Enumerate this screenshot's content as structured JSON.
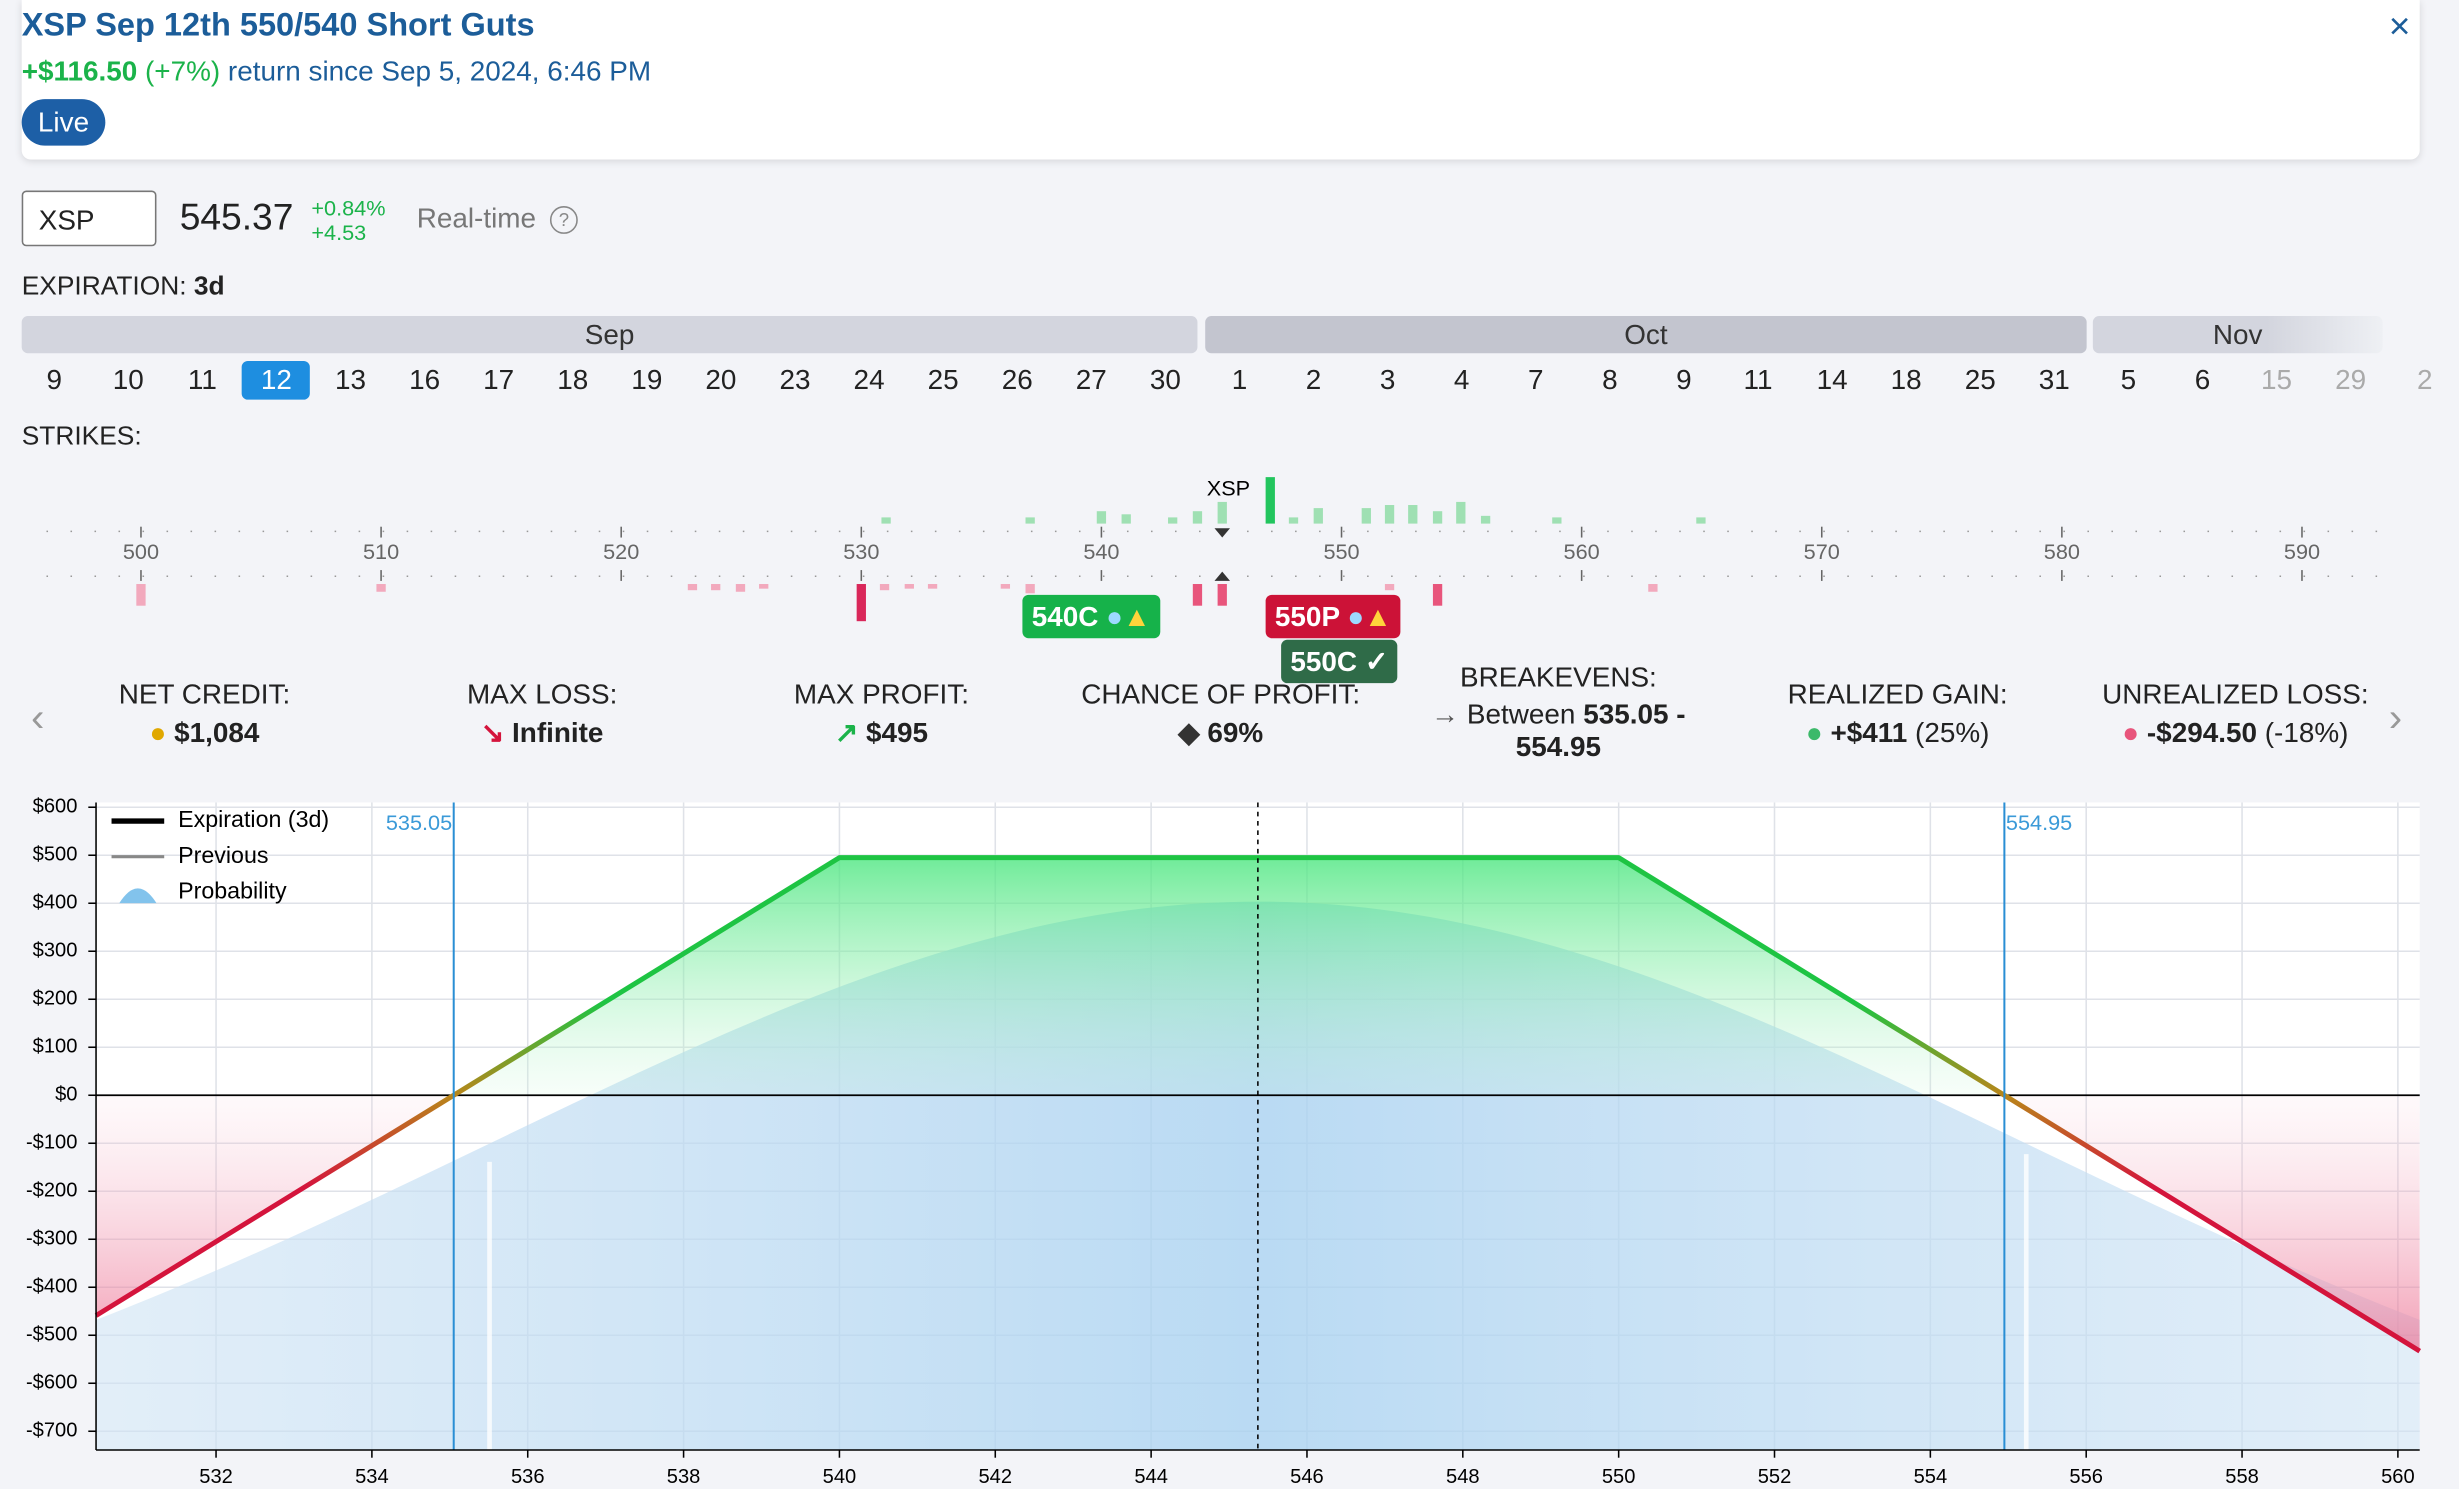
{
  "header": {
    "title": "XSP Sep 12th 550/540 Short Guts",
    "return_amount": "+$116.50",
    "return_pct": "(+7%)",
    "return_text": "return since Sep 5, 2024, 6:46 PM",
    "status": "Live",
    "close": "×"
  },
  "ticker": {
    "symbol": "XSP",
    "price": 545.37,
    "change_pct": "+0.84%",
    "change": "+4.53",
    "mode": "Real-time",
    "help": "?"
  },
  "expiration": {
    "label": "EXPIRATION:",
    "value": "3d",
    "selected": "12",
    "months": [
      {
        "name": "Sep",
        "dates": [
          "9",
          "10",
          "11",
          "12",
          "13",
          "16",
          "17",
          "18",
          "19",
          "20",
          "23",
          "24",
          "25",
          "26",
          "27",
          "30"
        ]
      },
      {
        "name": "Oct",
        "dates": [
          "1",
          "2",
          "3",
          "4",
          "7",
          "8",
          "9",
          "11",
          "14",
          "18",
          "25",
          "31"
        ]
      },
      {
        "name": "Nov",
        "dates": [
          "5",
          "6",
          "15",
          "29",
          "2"
        ]
      }
    ]
  },
  "strikes": {
    "label": "STRIKES:",
    "ticks": [
      500,
      510,
      520,
      530,
      540,
      550,
      560,
      570,
      580,
      590
    ],
    "marker": "XSP",
    "legs": [
      "540C",
      "550P",
      "550C"
    ]
  },
  "stats": [
    {
      "label": "NET CREDIT:",
      "value": "$1,084"
    },
    {
      "label": "MAX LOSS:",
      "value": "Infinite"
    },
    {
      "label": "MAX PROFIT:",
      "value": "$495"
    },
    {
      "label": "CHANCE OF PROFIT:",
      "value": "69%"
    },
    {
      "label": "BREAKEVENS:",
      "prefix": "Between",
      "value": "535.05 -",
      "value2": "554.95"
    },
    {
      "label": "REALIZED GAIN:",
      "value": "+$411",
      "note": "(25%)"
    },
    {
      "label": "UNREALIZED LOSS:",
      "value": "-$294.50",
      "note": "(-18%)"
    }
  ],
  "chart_data": {
    "type": "line",
    "x": [
      530.46,
      535.05,
      540,
      550,
      554.95,
      560.28
    ],
    "series": [
      {
        "name": "Expiration (3d)",
        "color": "#1ec443",
        "loss_color": "#d4143c",
        "values": [
          -459,
          0,
          495,
          495,
          0,
          -533
        ]
      }
    ],
    "legend_extra": [
      "Previous",
      "Probability"
    ],
    "breakevens": [
      535.05,
      554.95
    ],
    "xlim": [
      530.46,
      560.28
    ],
    "ylim": [
      -739,
      610
    ],
    "xticks": [
      532,
      534,
      536,
      538,
      540,
      542,
      544,
      546,
      548,
      550,
      552,
      554,
      556,
      558,
      560
    ],
    "yticks": [
      {
        "value": 600,
        "label": "$600"
      },
      {
        "value": 500,
        "label": "$500"
      },
      {
        "value": 400,
        "label": "$400"
      },
      {
        "value": 300,
        "label": "$300"
      },
      {
        "value": 200,
        "label": "$200"
      },
      {
        "value": 100,
        "label": "$100"
      },
      {
        "value": 0,
        "label": "$0"
      },
      {
        "value": -100,
        "label": "-$100"
      },
      {
        "value": -200,
        "label": "-$200"
      },
      {
        "value": -300,
        "label": "-$300"
      },
      {
        "value": -400,
        "label": "-$400"
      },
      {
        "value": -500,
        "label": "-$500"
      },
      {
        "value": -600,
        "label": "-$600"
      },
      {
        "value": -700,
        "label": "-$700"
      }
    ],
    "grid": true
  }
}
